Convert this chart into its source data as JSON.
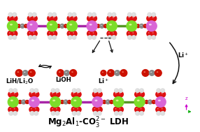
{
  "bg_color": "#ffffff",
  "fig_width": 2.86,
  "fig_height": 1.89,
  "dpi": 100,
  "mg_color": "#7cdd2a",
  "al_color": "#d966d6",
  "oh_o_color": "#dd1111",
  "h_color": "#dddddd",
  "c_color": "#888888",
  "co3_o_color": "#cc1100",
  "arrow_color": "#111111",
  "title": "Mg$_2$Al$_1$-CO$_3^{2-}$ LDH",
  "title_fontsize": 8.5,
  "ann_lih": "LiH/Li$_2$O",
  "ann_lioh": "LiOH",
  "ann_li": "Li$^+$",
  "ann_li_right": "Li$^+$"
}
